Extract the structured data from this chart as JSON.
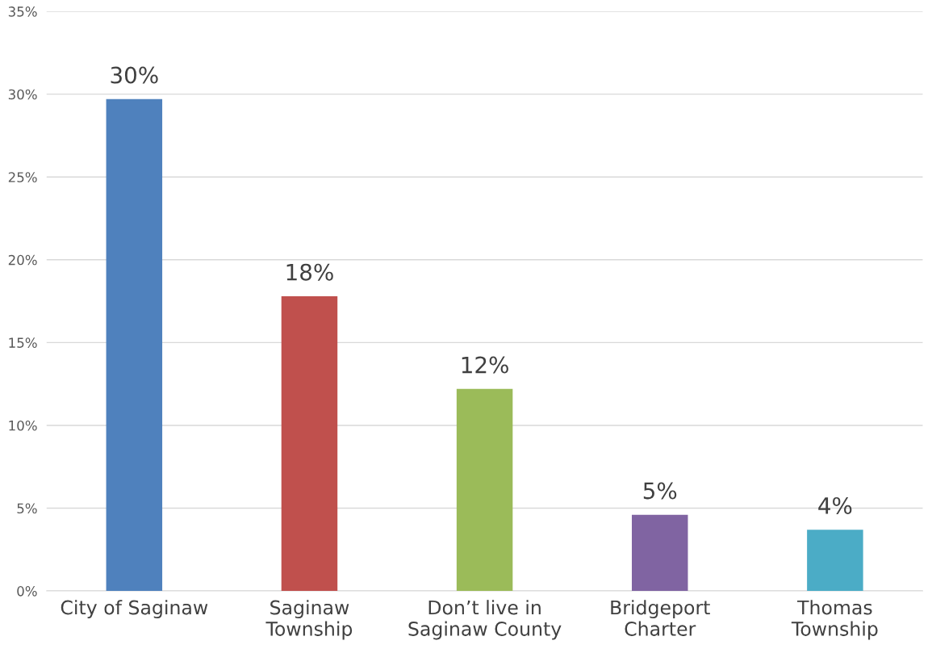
{
  "chart_data": {
    "type": "bar",
    "categories": [
      "City of Saginaw",
      "Saginaw\nTownship",
      "Don’t live in\nSaginaw County",
      "Bridgeport\nCharter",
      "Thomas\nTownship"
    ],
    "values": [
      29.7,
      17.8,
      12.2,
      4.6,
      3.7
    ],
    "colors": [
      "#4f81bd",
      "#c0504d",
      "#9bbb59",
      "#8064a2",
      "#4bacc6"
    ],
    "value_labels": [
      "30%",
      "18%",
      "12%",
      "5%",
      "4%"
    ],
    "ylim": [
      0,
      35
    ],
    "yticks": [
      {
        "value": 0,
        "label": "0%"
      },
      {
        "value": 5,
        "label": "5%"
      },
      {
        "value": 10,
        "label": "10%"
      },
      {
        "value": 15,
        "label": "15%"
      },
      {
        "value": 20,
        "label": "20%"
      },
      {
        "value": 25,
        "label": "25%"
      },
      {
        "value": 30,
        "label": "30%"
      },
      {
        "value": 35,
        "label": "35%"
      }
    ],
    "grid": "y"
  }
}
